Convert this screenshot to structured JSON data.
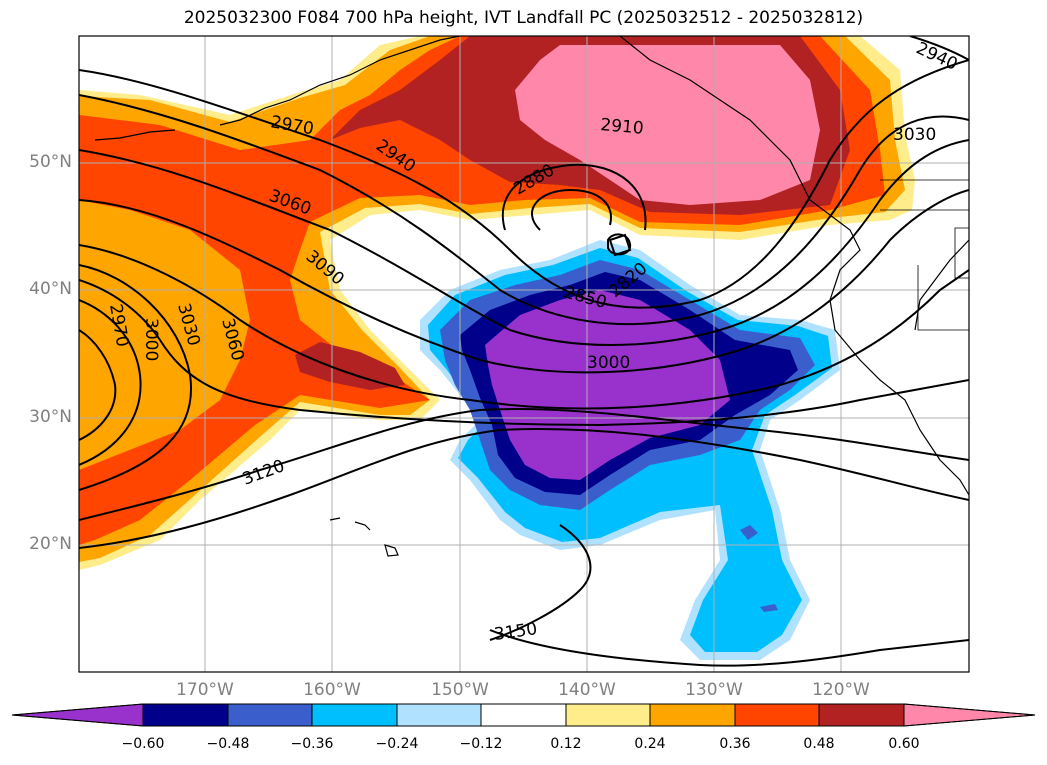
{
  "title": "2025032300 F084 700 hPa height, IVT Landfall PC (2025032512 - 2025032812)",
  "lat_labels": [
    "50°N",
    "40°N",
    "30°N",
    "20°N"
  ],
  "lon_labels": [
    "170°W",
    "160°W",
    "150°W",
    "140°W",
    "130°W",
    "120°W"
  ],
  "contour_labels": [
    "2970",
    "2940",
    "2910",
    "3030",
    "2880",
    "3060",
    "3090",
    "2850",
    "2820",
    "2970",
    "3000",
    "3030",
    "3060",
    "3000",
    "3120",
    "3150",
    "2940"
  ],
  "colorbar": {
    "ticks": [
      "−0.60",
      "−0.48",
      "−0.36",
      "−0.24",
      "−0.12",
      "0.12",
      "0.24",
      "0.36",
      "0.48",
      "0.60"
    ],
    "colors": [
      "#9932cc",
      "#00008b",
      "#3a5fcd",
      "#00bfff",
      "#b0e2ff",
      "#ffffff",
      "#ffec8b",
      "#ffa500",
      "#ff4500",
      "#b22222",
      "#ff88aa"
    ]
  },
  "chart_data": {
    "type": "heatmap",
    "title": "2025032300 F084 700 hPa height, IVT Landfall PC (2025032512 - 2025032812)",
    "extent_lon": [
      -180,
      -110
    ],
    "extent_lat": [
      10,
      60
    ],
    "contour_levels_m": [
      2820,
      2850,
      2880,
      2910,
      2940,
      2970,
      3000,
      3030,
      3060,
      3090,
      3120,
      3150
    ],
    "colorbar_levels": [
      -0.6,
      -0.48,
      -0.36,
      -0.24,
      -0.12,
      0.12,
      0.24,
      0.36,
      0.48,
      0.6
    ]
  }
}
